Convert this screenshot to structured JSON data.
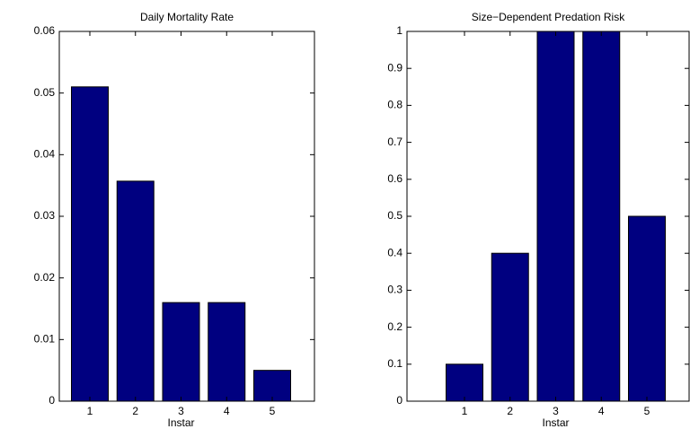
{
  "chart_data": [
    {
      "type": "bar",
      "title": "Daily Mortality Rate",
      "x_label": "Instar",
      "categories": [
        "1",
        "2",
        "3",
        "4",
        "5"
      ],
      "values": [
        0.051,
        0.0357,
        0.016,
        0.016,
        0.005
      ],
      "color": "#000080",
      "ylim": [
        0,
        0.06
      ],
      "yticks": [
        0,
        0.01,
        0.02,
        0.03,
        0.04,
        0.05,
        0.06
      ]
    },
    {
      "type": "bar",
      "title": "Size−Dependent Predation Risk",
      "x_label": "Instar",
      "categories": [
        "1",
        "2",
        "3",
        "4",
        "5"
      ],
      "values": [
        0.1,
        0.4,
        1,
        1,
        0.5
      ],
      "color": "#000080",
      "ylim": [
        0,
        1
      ],
      "yticks": [
        0,
        0.1,
        0.2,
        0.3,
        0.4,
        0.5,
        0.6,
        0.7,
        0.8,
        0.9,
        1
      ]
    }
  ]
}
